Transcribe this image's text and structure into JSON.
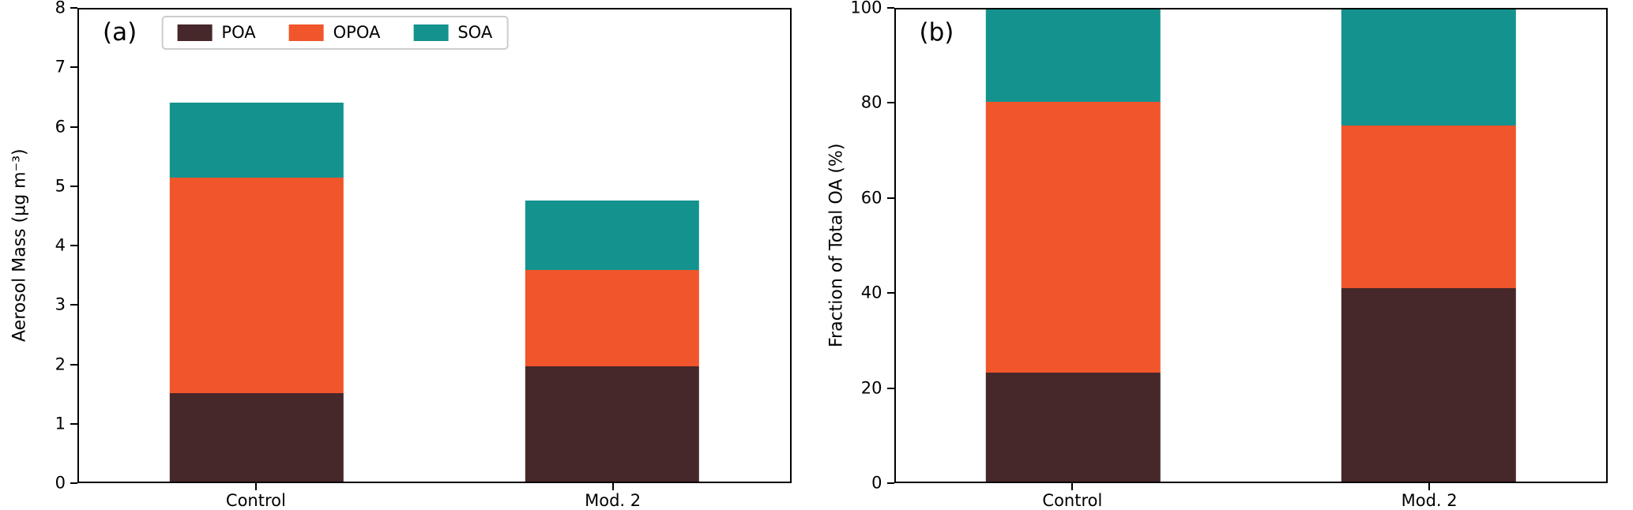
{
  "chart_data": [
    {
      "type": "bar",
      "stacked": true,
      "panel_label": "(a)",
      "categories": [
        "Control",
        "Mod. 2"
      ],
      "series": [
        {
          "name": "POA",
          "color": "#46272a",
          "values": [
            1.5,
            1.95
          ]
        },
        {
          "name": "OPOA",
          "color": "#f0552b",
          "values": [
            3.65,
            1.64
          ]
        },
        {
          "name": "SOA",
          "color": "#14938e",
          "values": [
            1.27,
            1.17
          ]
        }
      ],
      "totals": [
        6.42,
        4.76
      ],
      "ylabel": "Aerosol Mass (µg m⁻³)",
      "xlabel": "",
      "ylim": [
        0,
        8
      ],
      "yticks": [
        0,
        1,
        2,
        3,
        4,
        5,
        6,
        7,
        8
      ],
      "grid": false,
      "legend": {
        "show": true,
        "position": "upper center"
      }
    },
    {
      "type": "bar",
      "stacked": true,
      "panel_label": "(b)",
      "categories": [
        "Control",
        "Mod. 2"
      ],
      "series": [
        {
          "name": "POA",
          "color": "#46272a",
          "values": [
            23,
            41
          ]
        },
        {
          "name": "OPOA",
          "color": "#f0552b",
          "values": [
            57.5,
            34.5
          ]
        },
        {
          "name": "SOA",
          "color": "#14938e",
          "values": [
            19.5,
            24.5
          ]
        }
      ],
      "totals": [
        100,
        100
      ],
      "ylabel": "Fraction of Total OA (%)",
      "xlabel": "",
      "ylim": [
        0,
        100
      ],
      "yticks": [
        0,
        20,
        40,
        60,
        80,
        100
      ],
      "grid": false,
      "legend": {
        "show": false
      }
    }
  ],
  "legend_entries": [
    "POA",
    "OPOA",
    "SOA"
  ]
}
